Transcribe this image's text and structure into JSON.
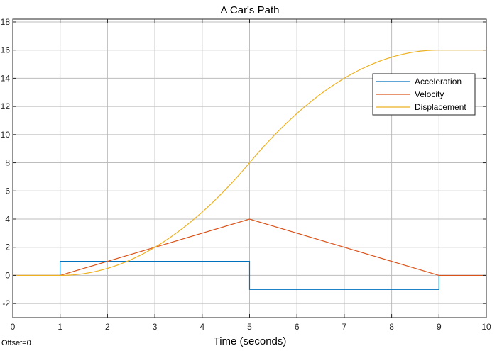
{
  "footer_text": "Offset=0",
  "chart_data": {
    "type": "line",
    "title": "A Car's Path",
    "xlabel": "Time (seconds)",
    "ylabel": "",
    "xlim": [
      0,
      10
    ],
    "ylim": [
      -3,
      18.2
    ],
    "x_ticks": [
      0,
      1,
      2,
      3,
      4,
      5,
      6,
      7,
      8,
      9,
      10
    ],
    "y_ticks": [
      -2,
      0,
      2,
      4,
      6,
      8,
      10,
      12,
      14,
      16,
      18
    ],
    "grid": true,
    "legend_position": "top-right",
    "series": [
      {
        "name": "Acceleration",
        "color": "#0072BD",
        "x": [
          0,
          1,
          1,
          5,
          5,
          9,
          9,
          10
        ],
        "y": [
          0,
          0,
          1,
          1,
          -1,
          -1,
          0,
          0
        ]
      },
      {
        "name": "Velocity",
        "color": "#D95319",
        "x": [
          0,
          1,
          5,
          9,
          10
        ],
        "y": [
          0,
          0,
          4,
          0,
          0
        ]
      },
      {
        "name": "Displacement",
        "color": "#EDB120",
        "x": [
          0,
          0.5,
          1,
          1.5,
          2,
          2.5,
          3,
          3.5,
          4,
          4.5,
          5,
          5.5,
          6,
          6.5,
          7,
          7.5,
          8,
          8.5,
          9,
          9.5,
          10
        ],
        "y": [
          0,
          0,
          0,
          0.125,
          0.5,
          1.125,
          2,
          3.125,
          4.5,
          6.125,
          8,
          9.875,
          11.5,
          12.875,
          14,
          14.875,
          15.5,
          15.875,
          16,
          16,
          16
        ]
      }
    ]
  }
}
